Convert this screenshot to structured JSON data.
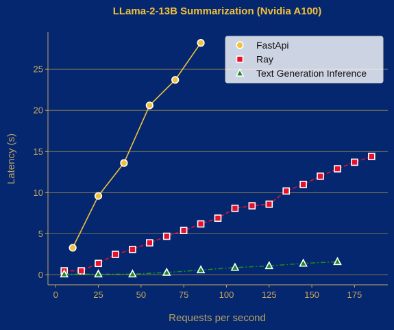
{
  "chart_data": {
    "type": "line",
    "title": "LLama-2-13B Summarization (Nvidia A100)",
    "xlabel": "Requests per second",
    "ylabel": "Latency (s)",
    "xlim": [
      -4.5,
      194.5
    ],
    "ylim": [
      -1.2,
      29.5
    ],
    "xticks": [
      0,
      25,
      50,
      75,
      100,
      125,
      150,
      175
    ],
    "yticks": [
      0,
      5,
      10,
      15,
      20,
      25
    ],
    "grid": "horizontal",
    "legend_position": "top-right",
    "series": [
      {
        "name": "FastApi",
        "color": "#f2c13a",
        "marker": "circle",
        "line_style": "solid",
        "x": [
          10,
          25,
          40,
          55,
          70,
          85
        ],
        "y": [
          3.3,
          9.6,
          13.6,
          20.6,
          23.7,
          28.2
        ]
      },
      {
        "name": "Ray",
        "color": "#e8112d",
        "marker": "square",
        "line_style": "dashed",
        "x": [
          5,
          15,
          25,
          35,
          45,
          55,
          65,
          75,
          85,
          95,
          105,
          115,
          125,
          135,
          145,
          155,
          165,
          175,
          185
        ],
        "y": [
          0.5,
          0.5,
          1.4,
          2.5,
          3.1,
          3.9,
          4.7,
          5.4,
          6.2,
          6.9,
          8.1,
          8.4,
          8.6,
          10.2,
          11.0,
          12.0,
          12.9,
          13.7,
          14.4
        ]
      },
      {
        "name": "Text Generation Inference",
        "color": "#1a8a22",
        "marker": "triangle",
        "line_style": "dashdot",
        "x": [
          5,
          25,
          45,
          65,
          85,
          105,
          125,
          145,
          165
        ],
        "y": [
          0.1,
          0.1,
          0.1,
          0.3,
          0.6,
          0.9,
          1.1,
          1.4,
          1.6
        ]
      }
    ]
  }
}
